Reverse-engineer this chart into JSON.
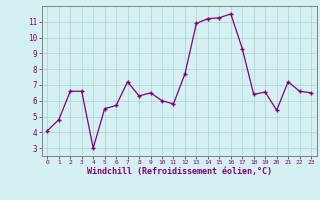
{
  "x": [
    0,
    1,
    2,
    3,
    4,
    5,
    6,
    7,
    8,
    9,
    10,
    11,
    12,
    13,
    14,
    15,
    16,
    17,
    18,
    19,
    20,
    21,
    22,
    23
  ],
  "y": [
    4.1,
    4.8,
    6.6,
    6.6,
    3.0,
    5.5,
    5.7,
    7.2,
    6.3,
    6.5,
    6.0,
    5.8,
    7.7,
    10.9,
    11.2,
    11.25,
    11.5,
    9.3,
    6.4,
    6.55,
    5.4,
    7.2,
    6.6,
    6.5
  ],
  "xlabel": "Windchill (Refroidissement éolien,°C)",
  "ylim": [
    2.5,
    12.0
  ],
  "xlim": [
    -0.5,
    23.5
  ],
  "yticks": [
    3,
    4,
    5,
    6,
    7,
    8,
    9,
    10,
    11
  ],
  "xticks": [
    0,
    1,
    2,
    3,
    4,
    5,
    6,
    7,
    8,
    9,
    10,
    11,
    12,
    13,
    14,
    15,
    16,
    17,
    18,
    19,
    20,
    21,
    22,
    23
  ],
  "line_color": "#800080",
  "bg_color": "#d4f0f0",
  "grid_color": "#b0d8d8",
  "spine_color": "#808080"
}
